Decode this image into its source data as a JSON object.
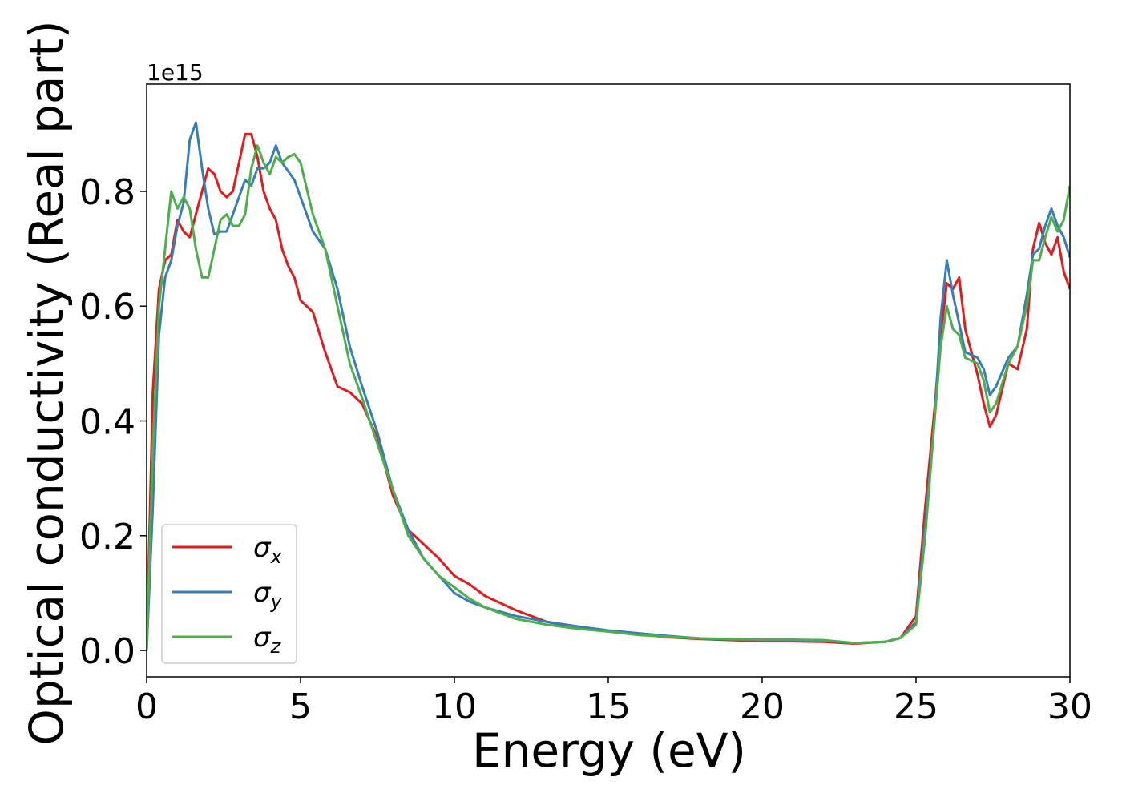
{
  "chart_data": {
    "type": "line",
    "xlabel": "Energy (eV)",
    "ylabel": "Optical conductivity (Real part)",
    "y_offset_text": "1e15",
    "x": [
      0,
      0.2,
      0.4,
      0.6,
      0.8,
      1.0,
      1.2,
      1.4,
      1.6,
      1.8,
      2.0,
      2.2,
      2.4,
      2.6,
      2.8,
      3.0,
      3.2,
      3.4,
      3.6,
      3.8,
      4.0,
      4.2,
      4.4,
      4.6,
      4.8,
      5.0,
      5.4,
      5.8,
      6.2,
      6.6,
      7.0,
      7.5,
      8.0,
      8.5,
      9.0,
      9.5,
      10,
      10.5,
      11,
      12,
      13,
      14,
      15,
      16,
      17,
      18,
      19,
      20,
      21,
      22,
      23,
      24,
      24.5,
      25,
      25.3,
      25.6,
      25.8,
      26.0,
      26.2,
      26.4,
      26.6,
      27.0,
      27.2,
      27.4,
      27.6,
      28.0,
      28.3,
      28.6,
      28.8,
      29.0,
      29.2,
      29.4,
      29.6,
      29.8,
      30
    ],
    "series": [
      {
        "name": "σx",
        "color": "#e41a1c",
        "values": [
          0,
          0.45,
          0.63,
          0.68,
          0.69,
          0.75,
          0.73,
          0.72,
          0.76,
          0.8,
          0.84,
          0.83,
          0.8,
          0.79,
          0.8,
          0.85,
          0.9,
          0.9,
          0.86,
          0.8,
          0.77,
          0.75,
          0.7,
          0.67,
          0.65,
          0.61,
          0.59,
          0.52,
          0.46,
          0.45,
          0.43,
          0.37,
          0.27,
          0.21,
          0.185,
          0.16,
          0.13,
          0.115,
          0.095,
          0.07,
          0.05,
          0.04,
          0.033,
          0.028,
          0.023,
          0.02,
          0.018,
          0.016,
          0.016,
          0.015,
          0.012,
          0.015,
          0.022,
          0.06,
          0.25,
          0.42,
          0.55,
          0.64,
          0.63,
          0.65,
          0.56,
          0.48,
          0.43,
          0.39,
          0.41,
          0.5,
          0.49,
          0.56,
          0.7,
          0.745,
          0.71,
          0.69,
          0.72,
          0.66,
          0.63
        ]
      },
      {
        "name": "σy",
        "color": "#377eb8",
        "values": [
          0,
          0.25,
          0.55,
          0.65,
          0.68,
          0.74,
          0.78,
          0.89,
          0.92,
          0.84,
          0.77,
          0.725,
          0.73,
          0.73,
          0.76,
          0.79,
          0.82,
          0.81,
          0.84,
          0.84,
          0.85,
          0.88,
          0.85,
          0.835,
          0.82,
          0.79,
          0.73,
          0.7,
          0.63,
          0.53,
          0.46,
          0.38,
          0.28,
          0.21,
          0.16,
          0.13,
          0.1,
          0.085,
          0.075,
          0.06,
          0.05,
          0.042,
          0.035,
          0.03,
          0.025,
          0.021,
          0.019,
          0.018,
          0.018,
          0.017,
          0.013,
          0.015,
          0.022,
          0.05,
          0.22,
          0.4,
          0.58,
          0.68,
          0.62,
          0.57,
          0.52,
          0.51,
          0.49,
          0.445,
          0.46,
          0.51,
          0.53,
          0.62,
          0.69,
          0.7,
          0.74,
          0.77,
          0.74,
          0.72,
          0.685
        ]
      },
      {
        "name": "σz",
        "color": "#4daf4a",
        "values": [
          0,
          0.35,
          0.6,
          0.7,
          0.8,
          0.77,
          0.79,
          0.77,
          0.7,
          0.65,
          0.65,
          0.7,
          0.75,
          0.76,
          0.74,
          0.74,
          0.76,
          0.84,
          0.88,
          0.85,
          0.83,
          0.86,
          0.85,
          0.86,
          0.865,
          0.85,
          0.76,
          0.7,
          0.6,
          0.5,
          0.44,
          0.36,
          0.28,
          0.2,
          0.16,
          0.13,
          0.11,
          0.09,
          0.075,
          0.055,
          0.045,
          0.038,
          0.033,
          0.027,
          0.024,
          0.021,
          0.02,
          0.019,
          0.019,
          0.018,
          0.013,
          0.015,
          0.022,
          0.045,
          0.2,
          0.4,
          0.53,
          0.6,
          0.56,
          0.55,
          0.51,
          0.5,
          0.47,
          0.415,
          0.43,
          0.5,
          0.53,
          0.6,
          0.68,
          0.68,
          0.72,
          0.755,
          0.73,
          0.75,
          0.81
        ]
      }
    ],
    "xlim": [
      0,
      30
    ],
    "xticks": [
      0,
      5,
      10,
      15,
      20,
      25,
      30
    ],
    "ylim": [
      -0.046,
      0.987
    ],
    "yticks": [
      {
        "value": 0,
        "label": "0.0"
      },
      0.2,
      0.4,
      0.6,
      0.8
    ],
    "grid": false,
    "legend": "lower left"
  }
}
